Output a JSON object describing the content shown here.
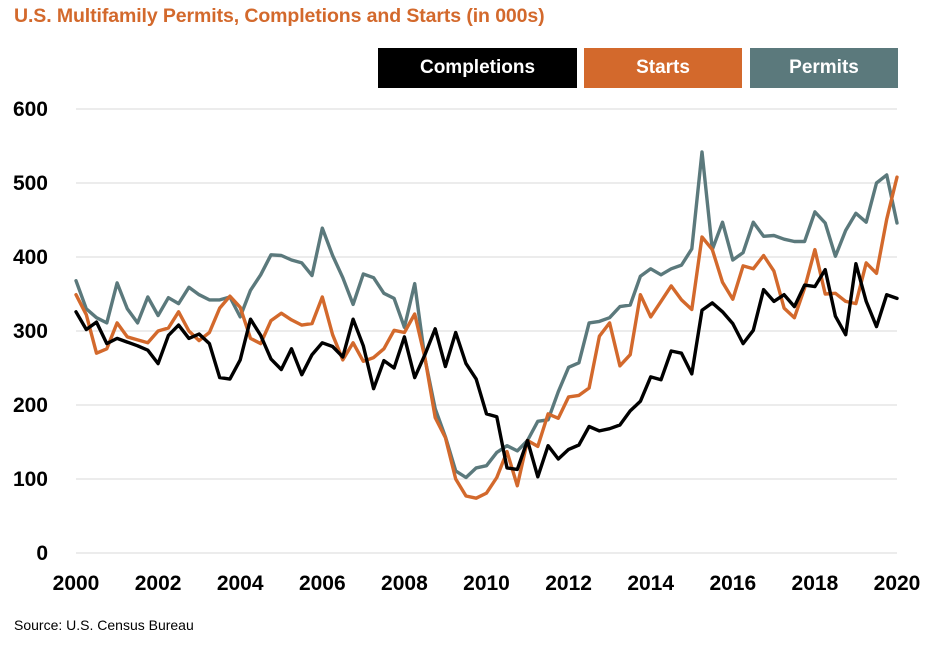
{
  "title": "U.S. Multifamily Permits, Completions and Starts (in 000s)",
  "source": "Source: U.S. Census Bureau",
  "colors": {
    "title": "#d3692c",
    "completions": "#000000",
    "starts": "#d3692c",
    "permits": "#5b797c",
    "grid": "#d9d9d9"
  },
  "chart_data": {
    "type": "line",
    "title": "U.S. Multifamily Permits, Completions and Starts (in 000s)",
    "xlabel": "",
    "ylabel": "",
    "xlim": [
      2000,
      2020
    ],
    "ylim": [
      0,
      600
    ],
    "yticks": [
      "0",
      "100",
      "200",
      "300",
      "400",
      "500",
      "600"
    ],
    "ytick_values": [
      0,
      100,
      200,
      300,
      400,
      500,
      600
    ],
    "xticks": [
      "2000",
      "2002",
      "2004",
      "2006",
      "2008",
      "2010",
      "2012",
      "2014",
      "2016",
      "2018",
      "2020"
    ],
    "xtick_values": [
      2000,
      2002,
      2004,
      2006,
      2008,
      2010,
      2012,
      2014,
      2016,
      2018,
      2020
    ],
    "grid": "horizontal",
    "legend_position": "top-right",
    "x_start": 2000,
    "x_step": 0.25,
    "series": [
      {
        "name": "Completions",
        "color": "#000000",
        "values": [
          326,
          302,
          312,
          283,
          290,
          285,
          280,
          274,
          256,
          294,
          308,
          290,
          296,
          283,
          237,
          235,
          261,
          316,
          294,
          262,
          248,
          276,
          241,
          268,
          284,
          279,
          265,
          316,
          280,
          222,
          260,
          250,
          292,
          237,
          268,
          303,
          252,
          298,
          256,
          235,
          188,
          184,
          115,
          113,
          152,
          103,
          145,
          127,
          140,
          146,
          171,
          165,
          168,
          173,
          192,
          205,
          238,
          234,
          273,
          270,
          242,
          328,
          338,
          326,
          310,
          283,
          301,
          356,
          340,
          349,
          333,
          362,
          360,
          383,
          320,
          295,
          391,
          340,
          306,
          349,
          344
        ],
        "values_note": "quarterly"
      },
      {
        "name": "Starts",
        "color": "#d3692c",
        "values": [
          349,
          322,
          270,
          276,
          311,
          292,
          288,
          284,
          300,
          304,
          326,
          300,
          287,
          298,
          331,
          347,
          332,
          290,
          283,
          314,
          324,
          315,
          308,
          310,
          346,
          295,
          261,
          284,
          259,
          264,
          276,
          301,
          298,
          323,
          264,
          183,
          156,
          100,
          77,
          74,
          81,
          102,
          137,
          91,
          152,
          144,
          188,
          182,
          211,
          213,
          223,
          293,
          311,
          253,
          268,
          349,
          319,
          340,
          361,
          342,
          329,
          427,
          410,
          366,
          343,
          388,
          384,
          402,
          381,
          331,
          318,
          358,
          410,
          350,
          351,
          340,
          337,
          392,
          378,
          451,
          508
        ],
        "values_note": "quarterly"
      },
      {
        "name": "Permits",
        "color": "#5b797c",
        "values": [
          368,
          330,
          318,
          311,
          365,
          330,
          311,
          346,
          321,
          345,
          337,
          359,
          349,
          342,
          342,
          346,
          319,
          355,
          376,
          403,
          402,
          396,
          392,
          375,
          439,
          402,
          372,
          336,
          377,
          372,
          351,
          344,
          305,
          364,
          263,
          195,
          157,
          111,
          102,
          115,
          118,
          136,
          145,
          138,
          152,
          178,
          180,
          218,
          251,
          257,
          311,
          313,
          318,
          333,
          335,
          374,
          384,
          376,
          384,
          389,
          411,
          542,
          410,
          447,
          396,
          406,
          447,
          428,
          429,
          424,
          421,
          421,
          461,
          446,
          401,
          436,
          459,
          447,
          500,
          511,
          446
        ],
        "values_note": "quarterly"
      }
    ]
  },
  "legend": [
    {
      "label": "Completions",
      "color": "#000000"
    },
    {
      "label": "Starts",
      "color": "#d3692c"
    },
    {
      "label": "Permits",
      "color": "#5b797c"
    }
  ]
}
